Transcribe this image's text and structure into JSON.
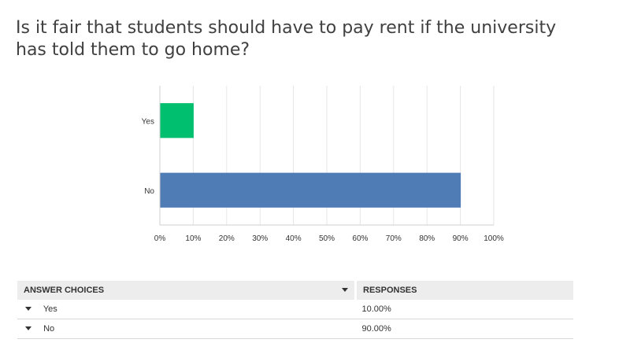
{
  "question": {
    "title": "Is it fair that students should have to pay rent if the university has told them to go home?"
  },
  "chart_data": {
    "type": "bar",
    "orientation": "horizontal",
    "categories": [
      "Yes",
      "No"
    ],
    "values": [
      10,
      90
    ],
    "colors": [
      "#00bf6f",
      "#507cb6"
    ],
    "xlim": [
      0,
      100
    ],
    "xticks": [
      "0%",
      "10%",
      "20%",
      "30%",
      "40%",
      "50%",
      "60%",
      "70%",
      "80%",
      "90%",
      "100%"
    ],
    "grid": true,
    "title": "",
    "xlabel": "",
    "ylabel": ""
  },
  "table": {
    "headers": {
      "choice": "ANSWER CHOICES",
      "responses": "RESPONSES"
    },
    "rows": [
      {
        "choice": "Yes",
        "response": "10.00%"
      },
      {
        "choice": "No",
        "response": "90.00%"
      }
    ]
  }
}
